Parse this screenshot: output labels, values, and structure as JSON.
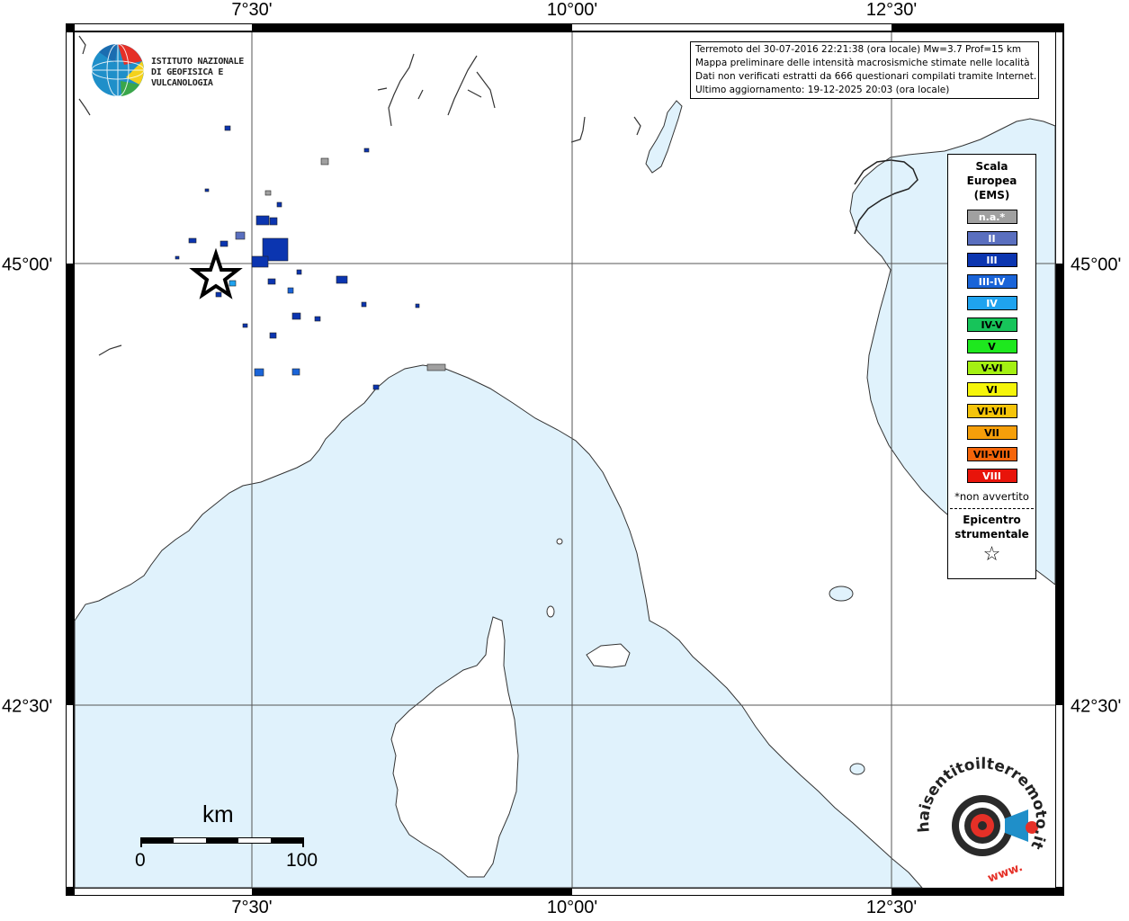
{
  "info": {
    "line1": "Terremoto del 30-07-2016 22:21:38 (ora locale) Mw=3.7 Prof=15 km",
    "line2": "Mappa preliminare delle intensità macrosismiche stimate nelle località",
    "line3": "Dati non verificati estratti da 666 questionari compilati tramite Internet.",
    "line4": "Ultimo aggiornamento: 19-12-2025 20:03 (ora locale)"
  },
  "axes": {
    "top": [
      "7°30'",
      "10°00'",
      "12°30'"
    ],
    "bottom": [
      "7°30'",
      "10°00'",
      "12°30'"
    ],
    "left": [
      "45°00'",
      "42°30'"
    ],
    "right": [
      "45°00'",
      "42°30'"
    ]
  },
  "logo_ingv": {
    "line1": "ISTITUTO NAZIONALE",
    "line2": "DI GEOFISICA E VULCANOLOGIA"
  },
  "legend": {
    "title_line1": "Scala",
    "title_line2": "Europea",
    "title_line3": "(EMS)",
    "items": [
      {
        "label": "n.a.*",
        "color": "#a0a0a0",
        "text_color": "#ffffff"
      },
      {
        "label": "II",
        "color": "#5a6fbf",
        "text_color": "#ffffff"
      },
      {
        "label": "III",
        "color": "#0b35b0",
        "text_color": "#ffffff"
      },
      {
        "label": "III-IV",
        "color": "#1a64d8",
        "text_color": "#ffffff"
      },
      {
        "label": "IV",
        "color": "#1fa3ef",
        "text_color": "#ffffff"
      },
      {
        "label": "IV-V",
        "color": "#17c45a",
        "text_color": "#000000"
      },
      {
        "label": "V",
        "color": "#1ee81e",
        "text_color": "#000000"
      },
      {
        "label": "V-VI",
        "color": "#a4f012",
        "text_color": "#000000"
      },
      {
        "label": "VI",
        "color": "#f5f50a",
        "text_color": "#000000"
      },
      {
        "label": "VI-VII",
        "color": "#f5c40a",
        "text_color": "#000000"
      },
      {
        "label": "VII",
        "color": "#f59f0a",
        "text_color": "#000000"
      },
      {
        "label": "VII-VIII",
        "color": "#f5650a",
        "text_color": "#000000"
      },
      {
        "label": "VIII",
        "color": "#e8140a",
        "text_color": "#ffffff"
      }
    ],
    "note": "*non avvertito",
    "epicenter_line1": "Epicentro",
    "epicenter_line2": "strumentale",
    "epicenter_symbol": "☆"
  },
  "scalebar": {
    "title": "km",
    "min": "0",
    "max": "100"
  },
  "hsit_logo": {
    "text": "haisentitoilterremoto.it",
    "sub": "www."
  },
  "colors": {
    "sea": "#e0f2fc",
    "land": "#ffffff"
  }
}
